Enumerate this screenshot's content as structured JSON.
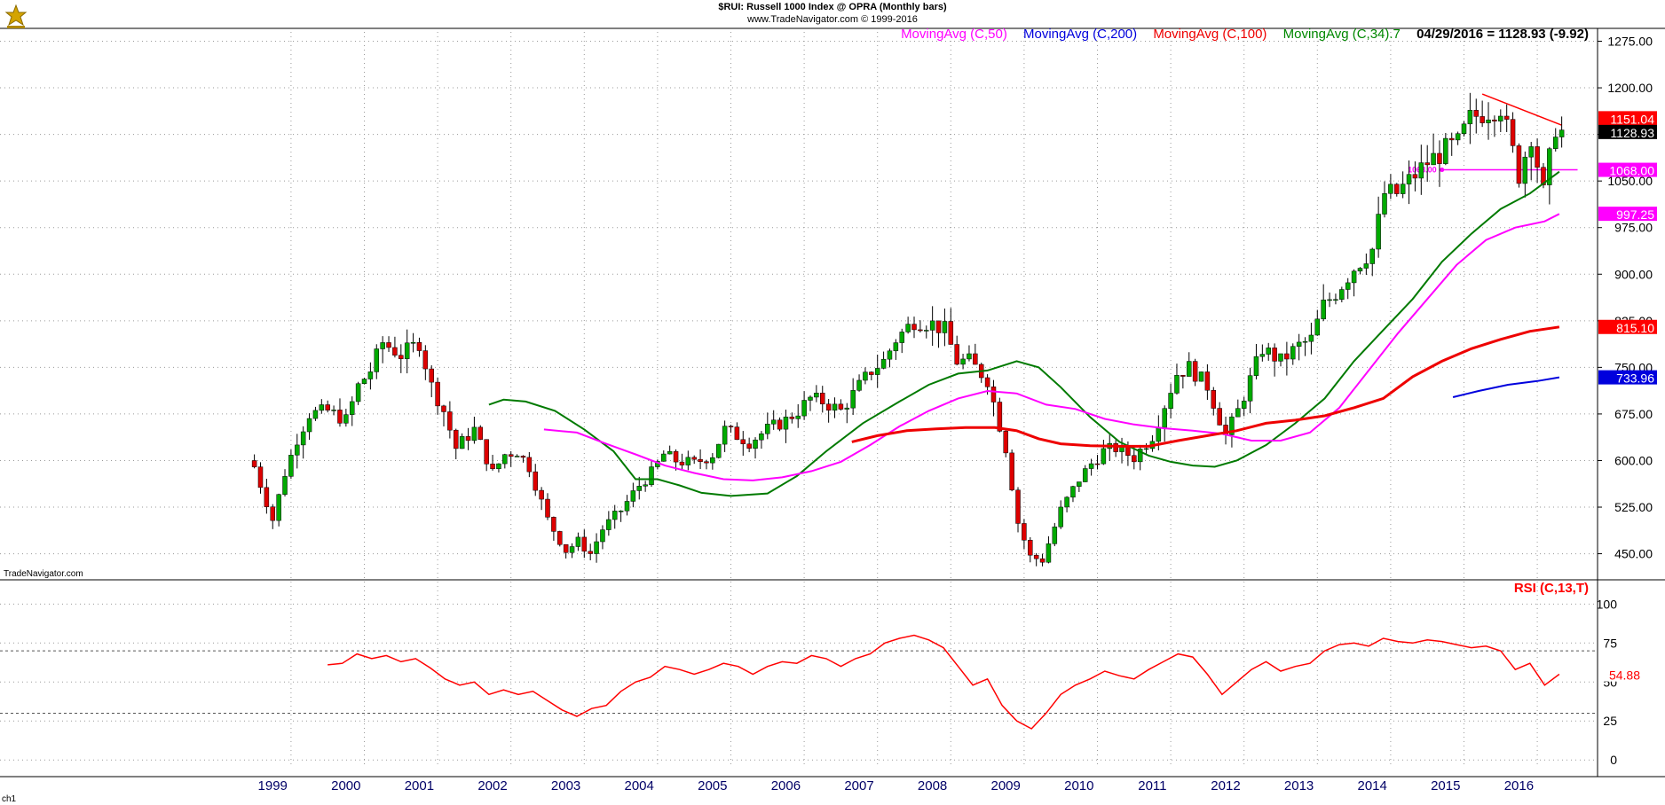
{
  "header": {
    "title": "$RUI:  Russell 1000 Index @ OPRA  (Monthly bars)",
    "source": "www.TradeNavigator.com © 1999-2016"
  },
  "legend": [
    {
      "label": "MovingAvg (C,50)",
      "color": "#ff00ff"
    },
    {
      "label": "MovingAvg (C,200)",
      "color": "#0000dd"
    },
    {
      "label": "MovingAvg (C,100)",
      "color": "#ee0000"
    },
    {
      "label": "MovingAvg (C,34).7",
      "color": "#008800"
    }
  ],
  "last_quote": "04/29/2016 = 1128.93 (-9.92)",
  "watermark": "TradeNavigator.com",
  "chart_tag": "ch1",
  "chart_data": {
    "type": "candlestick",
    "x_ticks": [
      "1999",
      "2000",
      "2001",
      "2002",
      "2003",
      "2004",
      "2005",
      "2006",
      "2007",
      "2008",
      "2009",
      "2010",
      "2011",
      "2012",
      "2013",
      "2014",
      "2015",
      "2016"
    ],
    "price_axis": {
      "ticks": [
        1275,
        1200,
        1125,
        1050,
        975,
        900,
        825,
        750,
        675,
        600,
        525,
        450
      ],
      "tick_labels": [
        "1275.00",
        "1200.00",
        "1125.00",
        "1050.00",
        "975.00",
        "900.00",
        "825.00",
        "750.00",
        "675.00",
        "600.00",
        "525.00",
        "450.00"
      ],
      "range": [
        408,
        1290
      ]
    },
    "price_path": [
      [
        1998.5,
        590
      ],
      [
        1998.75,
        505
      ],
      [
        1998.917,
        580
      ],
      [
        1999.083,
        635
      ],
      [
        1999.25,
        675
      ],
      [
        1999.5,
        680
      ],
      [
        1999.75,
        665
      ],
      [
        1999.917,
        720
      ],
      [
        2000.083,
        745
      ],
      [
        2000.25,
        790
      ],
      [
        2000.5,
        770
      ],
      [
        2000.75,
        790
      ],
      [
        2000.917,
        720
      ],
      [
        2001.083,
        680
      ],
      [
        2001.25,
        620
      ],
      [
        2001.5,
        650
      ],
      [
        2001.75,
        580
      ],
      [
        2001.917,
        610
      ],
      [
        2002.083,
        615
      ],
      [
        2002.25,
        590
      ],
      [
        2002.5,
        505
      ],
      [
        2002.75,
        455
      ],
      [
        2002.917,
        470
      ],
      [
        2003.083,
        450
      ],
      [
        2003.25,
        490
      ],
      [
        2003.5,
        520
      ],
      [
        2003.75,
        560
      ],
      [
        2003.917,
        580
      ],
      [
        2004.083,
        610
      ],
      [
        2004.25,
        600
      ],
      [
        2004.5,
        595
      ],
      [
        2004.75,
        610
      ],
      [
        2004.917,
        650
      ],
      [
        2005.083,
        640
      ],
      [
        2005.25,
        630
      ],
      [
        2005.5,
        650
      ],
      [
        2005.75,
        665
      ],
      [
        2005.917,
        680
      ],
      [
        2006.083,
        700
      ],
      [
        2006.25,
        695
      ],
      [
        2006.5,
        680
      ],
      [
        2006.75,
        720
      ],
      [
        2006.917,
        745
      ],
      [
        2007.083,
        760
      ],
      [
        2007.25,
        795
      ],
      [
        2007.5,
        825
      ],
      [
        2007.75,
        820
      ],
      [
        2007.917,
        810
      ],
      [
        2008.083,
        760
      ],
      [
        2008.25,
        760
      ],
      [
        2008.5,
        730
      ],
      [
        2008.75,
        620
      ],
      [
        2008.917,
        500
      ],
      [
        2009.083,
        445
      ],
      [
        2009.25,
        440
      ],
      [
        2009.5,
        520
      ],
      [
        2009.75,
        570
      ],
      [
        2009.917,
        595
      ],
      [
        2010.083,
        615
      ],
      [
        2010.25,
        620
      ],
      [
        2010.5,
        605
      ],
      [
        2010.75,
        640
      ],
      [
        2010.917,
        690
      ],
      [
        2011.083,
        740
      ],
      [
        2011.25,
        750
      ],
      [
        2011.5,
        720
      ],
      [
        2011.75,
        640
      ],
      [
        2011.917,
        680
      ],
      [
        2012.083,
        730
      ],
      [
        2012.25,
        780
      ],
      [
        2012.5,
        760
      ],
      [
        2012.75,
        785
      ],
      [
        2012.917,
        795
      ],
      [
        2013.083,
        850
      ],
      [
        2013.25,
        870
      ],
      [
        2013.5,
        910
      ],
      [
        2013.75,
        940
      ],
      [
        2013.917,
        1030
      ],
      [
        2014.083,
        1030
      ],
      [
        2014.25,
        1050
      ],
      [
        2014.5,
        1080
      ],
      [
        2014.75,
        1100
      ],
      [
        2014.917,
        1110
      ],
      [
        2015.083,
        1150
      ],
      [
        2015.25,
        1160
      ],
      [
        2015.5,
        1170
      ],
      [
        2015.75,
        1060
      ],
      [
        2015.917,
        1125
      ],
      [
        2016.083,
        1030
      ],
      [
        2016.25,
        1138
      ],
      [
        2016.333,
        1129
      ]
    ],
    "moving_averages": [
      {
        "name": "MovingAvg (C,34).7",
        "color": "#007a00",
        "width": 2,
        "points": [
          [
            2001.7,
            690
          ],
          [
            2001.9,
            698
          ],
          [
            2002.2,
            695
          ],
          [
            2002.6,
            680
          ],
          [
            2003.0,
            650
          ],
          [
            2003.4,
            615
          ],
          [
            2003.7,
            570
          ],
          [
            2004.0,
            570
          ],
          [
            2004.3,
            560
          ],
          [
            2004.6,
            548
          ],
          [
            2005.0,
            543
          ],
          [
            2005.5,
            547
          ],
          [
            2005.9,
            575
          ],
          [
            2006.3,
            615
          ],
          [
            2006.8,
            660
          ],
          [
            2007.3,
            695
          ],
          [
            2007.7,
            722
          ],
          [
            2008.1,
            740
          ],
          [
            2008.5,
            745
          ],
          [
            2008.9,
            760
          ],
          [
            2009.2,
            750
          ],
          [
            2009.5,
            718
          ],
          [
            2009.9,
            670
          ],
          [
            2010.3,
            630
          ],
          [
            2010.7,
            608
          ],
          [
            2011.0,
            598
          ],
          [
            2011.3,
            592
          ],
          [
            2011.6,
            590
          ],
          [
            2011.9,
            600
          ],
          [
            2012.3,
            625
          ],
          [
            2012.7,
            660
          ],
          [
            2013.1,
            700
          ],
          [
            2013.5,
            760
          ],
          [
            2013.9,
            810
          ],
          [
            2014.3,
            860
          ],
          [
            2014.7,
            920
          ],
          [
            2015.1,
            965
          ],
          [
            2015.5,
            1005
          ],
          [
            2015.9,
            1030
          ],
          [
            2016.3,
            1065
          ]
        ]
      },
      {
        "name": "MovingAvg (C,50)",
        "color": "#ff00ff",
        "width": 2,
        "points": [
          [
            2002.45,
            650
          ],
          [
            2002.9,
            645
          ],
          [
            2003.3,
            627
          ],
          [
            2003.7,
            610
          ],
          [
            2004.1,
            592
          ],
          [
            2004.5,
            580
          ],
          [
            2004.9,
            570
          ],
          [
            2005.3,
            568
          ],
          [
            2005.7,
            573
          ],
          [
            2006.1,
            583
          ],
          [
            2006.5,
            598
          ],
          [
            2006.9,
            625
          ],
          [
            2007.3,
            655
          ],
          [
            2007.7,
            680
          ],
          [
            2008.1,
            700
          ],
          [
            2008.5,
            712
          ],
          [
            2008.9,
            708
          ],
          [
            2009.3,
            690
          ],
          [
            2009.7,
            683
          ],
          [
            2010.1,
            667
          ],
          [
            2010.5,
            658
          ],
          [
            2010.9,
            652
          ],
          [
            2011.3,
            648
          ],
          [
            2011.7,
            643
          ],
          [
            2012.1,
            632
          ],
          [
            2012.5,
            632
          ],
          [
            2012.9,
            645
          ],
          [
            2013.3,
            685
          ],
          [
            2013.7,
            745
          ],
          [
            2014.1,
            805
          ],
          [
            2014.5,
            860
          ],
          [
            2014.9,
            915
          ],
          [
            2015.3,
            955
          ],
          [
            2015.7,
            975
          ],
          [
            2016.1,
            985
          ],
          [
            2016.3,
            997
          ]
        ]
      },
      {
        "name": "MovingAvg (C,100)",
        "color": "#ee0000",
        "width": 3,
        "points": [
          [
            2006.65,
            630
          ],
          [
            2007.0,
            640
          ],
          [
            2007.4,
            648
          ],
          [
            2007.8,
            651
          ],
          [
            2008.2,
            653
          ],
          [
            2008.6,
            653
          ],
          [
            2008.9,
            648
          ],
          [
            2009.2,
            635
          ],
          [
            2009.5,
            627
          ],
          [
            2009.9,
            624
          ],
          [
            2010.3,
            623
          ],
          [
            2010.7,
            623
          ],
          [
            2011.1,
            632
          ],
          [
            2011.5,
            640
          ],
          [
            2011.9,
            648
          ],
          [
            2012.3,
            660
          ],
          [
            2012.7,
            665
          ],
          [
            2013.1,
            672
          ],
          [
            2013.5,
            685
          ],
          [
            2013.9,
            700
          ],
          [
            2014.3,
            735
          ],
          [
            2014.7,
            760
          ],
          [
            2015.1,
            780
          ],
          [
            2015.5,
            795
          ],
          [
            2015.9,
            808
          ],
          [
            2016.3,
            815
          ]
        ]
      },
      {
        "name": "MovingAvg (C,200)",
        "color": "#0000dd",
        "width": 2,
        "points": [
          [
            2014.85,
            702
          ],
          [
            2015.2,
            712
          ],
          [
            2015.6,
            722
          ],
          [
            2016.0,
            728
          ],
          [
            2016.3,
            734
          ]
        ]
      }
    ],
    "annotations": [
      {
        "type": "horizontal",
        "value": 1068,
        "label": "1068.00",
        "color": "#ff00ff",
        "from": 2014.7,
        "to": 2016.55
      },
      {
        "type": "trendline",
        "from": [
          2015.25,
          1190
        ],
        "to": [
          2016.33,
          1140
        ],
        "color": "#ff0000"
      }
    ],
    "price_tags": [
      {
        "value": 1151.04,
        "label": "1151.04",
        "bg": "#ff0000",
        "fg": "#ffffff"
      },
      {
        "value": 1128.93,
        "label": "1128.93",
        "bg": "#000000",
        "fg": "#ffffff"
      },
      {
        "value": 1068.0,
        "label": "1068.00",
        "bg": "#ff00ff",
        "fg": "#ffffff"
      },
      {
        "value": 997.25,
        "label": "997.25",
        "bg": "#ff00ff",
        "fg": "#ffffff"
      },
      {
        "value": 815.1,
        "label": "815.10",
        "bg": "#ff0000",
        "fg": "#ffffff"
      },
      {
        "value": 733.96,
        "label": "733.96",
        "bg": "#0000dd",
        "fg": "#ffffff"
      }
    ],
    "rsi": {
      "label": "RSI (C,13,T)",
      "color": "#ff0000",
      "ticks": [
        100,
        75,
        50,
        25,
        0
      ],
      "tick_labels": [
        "100",
        "75",
        "50",
        "25",
        "0"
      ],
      "range": [
        -5,
        111
      ],
      "levels": [
        70,
        30
      ],
      "last": "54.88",
      "points": [
        [
          1999.5,
          61
        ],
        [
          1999.7,
          62
        ],
        [
          1999.9,
          68
        ],
        [
          2000.1,
          65
        ],
        [
          2000.3,
          67
        ],
        [
          2000.5,
          63
        ],
        [
          2000.7,
          65
        ],
        [
          2000.9,
          59
        ],
        [
          2001.1,
          52
        ],
        [
          2001.3,
          48
        ],
        [
          2001.5,
          50
        ],
        [
          2001.7,
          42
        ],
        [
          2001.9,
          45
        ],
        [
          2002.1,
          42
        ],
        [
          2002.3,
          44
        ],
        [
          2002.5,
          38
        ],
        [
          2002.7,
          32
        ],
        [
          2002.9,
          28
        ],
        [
          2003.1,
          33
        ],
        [
          2003.3,
          35
        ],
        [
          2003.5,
          44
        ],
        [
          2003.7,
          50
        ],
        [
          2003.9,
          53
        ],
        [
          2004.1,
          60
        ],
        [
          2004.3,
          58
        ],
        [
          2004.5,
          55
        ],
        [
          2004.7,
          58
        ],
        [
          2004.9,
          62
        ],
        [
          2005.1,
          60
        ],
        [
          2005.3,
          55
        ],
        [
          2005.5,
          60
        ],
        [
          2005.7,
          63
        ],
        [
          2005.9,
          62
        ],
        [
          2006.1,
          67
        ],
        [
          2006.3,
          65
        ],
        [
          2006.5,
          60
        ],
        [
          2006.7,
          65
        ],
        [
          2006.9,
          68
        ],
        [
          2007.1,
          75
        ],
        [
          2007.3,
          78
        ],
        [
          2007.5,
          80
        ],
        [
          2007.7,
          77
        ],
        [
          2007.9,
          72
        ],
        [
          2008.1,
          60
        ],
        [
          2008.3,
          48
        ],
        [
          2008.5,
          52
        ],
        [
          2008.7,
          35
        ],
        [
          2008.9,
          25
        ],
        [
          2009.1,
          20
        ],
        [
          2009.3,
          30
        ],
        [
          2009.5,
          42
        ],
        [
          2009.7,
          48
        ],
        [
          2009.9,
          52
        ],
        [
          2010.1,
          57
        ],
        [
          2010.3,
          54
        ],
        [
          2010.5,
          52
        ],
        [
          2010.7,
          58
        ],
        [
          2010.9,
          63
        ],
        [
          2011.1,
          68
        ],
        [
          2011.3,
          66
        ],
        [
          2011.5,
          55
        ],
        [
          2011.7,
          42
        ],
        [
          2011.9,
          50
        ],
        [
          2012.1,
          58
        ],
        [
          2012.3,
          63
        ],
        [
          2012.5,
          57
        ],
        [
          2012.7,
          60
        ],
        [
          2012.9,
          62
        ],
        [
          2013.1,
          70
        ],
        [
          2013.3,
          74
        ],
        [
          2013.5,
          75
        ],
        [
          2013.7,
          73
        ],
        [
          2013.9,
          78
        ],
        [
          2014.1,
          76
        ],
        [
          2014.3,
          75
        ],
        [
          2014.5,
          77
        ],
        [
          2014.7,
          76
        ],
        [
          2014.9,
          74
        ],
        [
          2015.1,
          72
        ],
        [
          2015.3,
          73
        ],
        [
          2015.5,
          70
        ],
        [
          2015.7,
          58
        ],
        [
          2015.9,
          62
        ],
        [
          2016.1,
          48
        ],
        [
          2016.3,
          55
        ]
      ]
    }
  }
}
